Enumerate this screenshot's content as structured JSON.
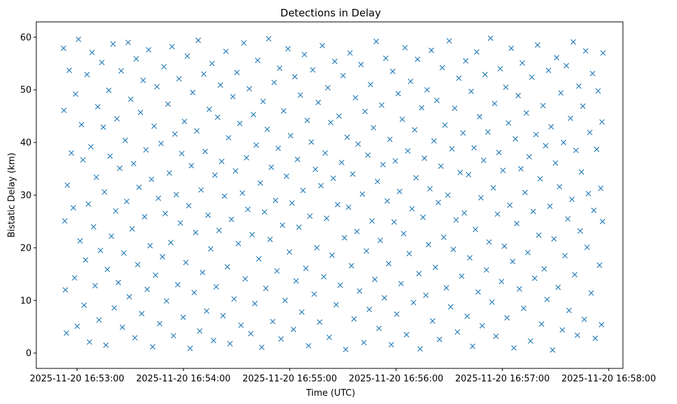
{
  "chart_data": {
    "type": "scatter",
    "title": "Detections in Delay",
    "xlabel": "Time (UTC)",
    "ylabel": "Bistatic Delay (km)",
    "marker": "x",
    "color": "#1f77b4",
    "x_unit": "seconds after 2025-11-20 16:52:00 UTC",
    "xlim": [
      37.0,
      368.0
    ],
    "ylim": [
      -2.9,
      62.9
    ],
    "x_ticks": [
      {
        "value": 60,
        "label": "2025-11-20 16:53:00"
      },
      {
        "value": 120,
        "label": "2025-11-20 16:54:00"
      },
      {
        "value": 180,
        "label": "2025-11-20 16:55:00"
      },
      {
        "value": 240,
        "label": "2025-11-20 16:56:00"
      },
      {
        "value": 300,
        "label": "2025-11-20 16:57:00"
      },
      {
        "value": 360,
        "label": "2025-11-20 16:58:00"
      }
    ],
    "y_ticks": [
      {
        "value": 0,
        "label": "0"
      },
      {
        "value": 10,
        "label": "10"
      },
      {
        "value": 20,
        "label": "20"
      },
      {
        "value": 30,
        "label": "30"
      },
      {
        "value": 40,
        "label": "40"
      },
      {
        "value": 50,
        "label": "50"
      },
      {
        "value": 60,
        "label": "60"
      }
    ],
    "points": [
      [
        52.4,
        57.9
      ],
      [
        52.6,
        46.1
      ],
      [
        53.1,
        25.1
      ],
      [
        53.4,
        12.0
      ],
      [
        54.0,
        3.8
      ],
      [
        54.5,
        31.9
      ],
      [
        55.6,
        53.7
      ],
      [
        56.8,
        38.0
      ],
      [
        57.9,
        27.6
      ],
      [
        58.6,
        14.3
      ],
      [
        59.2,
        49.2
      ],
      [
        60.1,
        5.1
      ],
      [
        60.8,
        59.6
      ],
      [
        61.7,
        21.3
      ],
      [
        62.5,
        43.4
      ],
      [
        63.3,
        36.7
      ],
      [
        64.0,
        9.1
      ],
      [
        64.8,
        17.7
      ],
      [
        65.6,
        52.9
      ],
      [
        66.4,
        28.3
      ],
      [
        67.0,
        2.1
      ],
      [
        67.8,
        39.2
      ],
      [
        68.5,
        57.1
      ],
      [
        69.3,
        24.0
      ],
      [
        70.2,
        12.8
      ],
      [
        70.9,
        33.4
      ],
      [
        71.7,
        46.8
      ],
      [
        72.4,
        6.3
      ],
      [
        73.2,
        19.5
      ],
      [
        74.0,
        55.2
      ],
      [
        74.8,
        42.9
      ],
      [
        75.5,
        30.6
      ],
      [
        76.3,
        1.5
      ],
      [
        77.1,
        15.9
      ],
      [
        77.9,
        49.9
      ],
      [
        78.6,
        37.4
      ],
      [
        79.4,
        22.2
      ],
      [
        80.3,
        58.7
      ],
      [
        81.0,
        8.6
      ],
      [
        81.8,
        27.0
      ],
      [
        82.5,
        44.5
      ],
      [
        83.3,
        13.4
      ],
      [
        84.1,
        35.1
      ],
      [
        84.9,
        53.6
      ],
      [
        85.6,
        4.9
      ],
      [
        86.4,
        19.0
      ],
      [
        87.2,
        40.4
      ],
      [
        88.0,
        28.8
      ],
      [
        88.8,
        59.0
      ],
      [
        89.5,
        10.7
      ],
      [
        90.3,
        48.2
      ],
      [
        91.1,
        23.6
      ],
      [
        91.9,
        36.0
      ],
      [
        92.6,
        2.9
      ],
      [
        93.4,
        55.9
      ],
      [
        94.2,
        16.8
      ],
      [
        95.0,
        31.5
      ],
      [
        95.8,
        45.7
      ],
      [
        96.5,
        7.5
      ],
      [
        97.3,
        51.8
      ],
      [
        98.1,
        25.9
      ],
      [
        98.9,
        38.6
      ],
      [
        99.6,
        12.1
      ],
      [
        100.4,
        57.6
      ],
      [
        101.2,
        20.4
      ],
      [
        102.0,
        33.0
      ],
      [
        102.7,
        1.2
      ],
      [
        103.5,
        43.1
      ],
      [
        104.3,
        14.8
      ],
      [
        105.1,
        50.6
      ],
      [
        105.9,
        29.4
      ],
      [
        106.6,
        5.6
      ],
      [
        107.4,
        39.8
      ],
      [
        108.2,
        18.3
      ],
      [
        109.0,
        54.4
      ],
      [
        109.8,
        26.5
      ],
      [
        110.5,
        9.9
      ],
      [
        111.3,
        47.3
      ],
      [
        112.1,
        34.2
      ],
      [
        112.9,
        21.0
      ],
      [
        113.6,
        58.2
      ],
      [
        114.4,
        3.3
      ],
      [
        115.2,
        41.6
      ],
      [
        116.0,
        30.1
      ],
      [
        116.8,
        13.0
      ],
      [
        117.5,
        52.1
      ],
      [
        118.3,
        24.7
      ],
      [
        119.1,
        37.9
      ],
      [
        119.9,
        6.8
      ],
      [
        120.6,
        44.0
      ],
      [
        121.4,
        17.2
      ],
      [
        122.2,
        56.4
      ],
      [
        123.0,
        28.0
      ],
      [
        123.8,
        0.9
      ],
      [
        124.5,
        35.6
      ],
      [
        125.3,
        49.5
      ],
      [
        126.1,
        11.5
      ],
      [
        126.9,
        22.9
      ],
      [
        127.6,
        42.2
      ],
      [
        128.4,
        59.4
      ],
      [
        129.2,
        4.2
      ],
      [
        130.0,
        31.0
      ],
      [
        130.8,
        15.3
      ],
      [
        131.5,
        53.0
      ],
      [
        132.3,
        38.3
      ],
      [
        133.1,
        8.0
      ],
      [
        133.9,
        26.2
      ],
      [
        134.6,
        46.3
      ],
      [
        135.4,
        19.8
      ],
      [
        136.2,
        55.0
      ],
      [
        137.0,
        2.4
      ],
      [
        137.8,
        33.8
      ],
      [
        138.5,
        12.6
      ],
      [
        139.3,
        44.8
      ],
      [
        140.1,
        23.3
      ],
      [
        140.9,
        50.9
      ],
      [
        141.6,
        36.4
      ],
      [
        142.4,
        7.1
      ],
      [
        143.2,
        29.8
      ],
      [
        144.0,
        57.3
      ],
      [
        144.8,
        16.4
      ],
      [
        145.5,
        40.9
      ],
      [
        146.3,
        1.8
      ],
      [
        147.1,
        25.4
      ],
      [
        147.9,
        48.7
      ],
      [
        148.6,
        10.3
      ],
      [
        149.4,
        34.6
      ],
      [
        150.2,
        53.3
      ],
      [
        151.0,
        20.8
      ],
      [
        151.8,
        43.6
      ],
      [
        152.5,
        5.3
      ],
      [
        153.3,
        30.4
      ],
      [
        154.1,
        58.9
      ],
      [
        154.9,
        14.1
      ],
      [
        155.6,
        37.1
      ],
      [
        156.4,
        27.3
      ],
      [
        157.2,
        50.2
      ],
      [
        158.0,
        3.7
      ],
      [
        158.8,
        22.5
      ],
      [
        159.5,
        45.3
      ],
      [
        160.3,
        9.4
      ],
      [
        161.1,
        39.5
      ],
      [
        161.9,
        55.6
      ],
      [
        162.6,
        17.9
      ],
      [
        163.4,
        32.3
      ],
      [
        164.2,
        1.1
      ],
      [
        165.0,
        47.8
      ],
      [
        165.8,
        26.8
      ],
      [
        166.5,
        12.3
      ],
      [
        167.3,
        42.5
      ],
      [
        168.1,
        59.7
      ],
      [
        168.9,
        21.6
      ],
      [
        169.6,
        35.3
      ],
      [
        170.4,
        6.0
      ],
      [
        171.2,
        51.4
      ],
      [
        172.0,
        29.0
      ],
      [
        172.8,
        15.6
      ],
      [
        173.5,
        38.9
      ],
      [
        174.3,
        54.1
      ],
      [
        175.1,
        2.7
      ],
      [
        175.9,
        24.3
      ],
      [
        176.6,
        46.0
      ],
      [
        177.4,
        10.0
      ],
      [
        178.2,
        33.6
      ],
      [
        179.0,
        57.8
      ],
      [
        179.8,
        19.2
      ],
      [
        180.5,
        41.3
      ],
      [
        181.3,
        28.5
      ],
      [
        182.1,
        4.5
      ],
      [
        182.9,
        52.5
      ],
      [
        183.6,
        13.7
      ],
      [
        184.4,
        36.8
      ],
      [
        185.2,
        23.9
      ],
      [
        186.0,
        49.0
      ],
      [
        186.8,
        7.8
      ],
      [
        187.5,
        30.9
      ],
      [
        188.3,
        56.7
      ],
      [
        189.1,
        16.1
      ],
      [
        189.9,
        44.2
      ],
      [
        190.6,
        1.4
      ],
      [
        191.4,
        26.0
      ],
      [
        192.2,
        40.1
      ],
      [
        193.0,
        53.8
      ],
      [
        193.8,
        11.2
      ],
      [
        194.5,
        34.9
      ],
      [
        195.3,
        20.0
      ],
      [
        196.1,
        47.6
      ],
      [
        196.9,
        5.9
      ],
      [
        197.6,
        31.8
      ],
      [
        198.4,
        58.4
      ],
      [
        199.2,
        14.5
      ],
      [
        200.0,
        38.0
      ],
      [
        200.8,
        25.6
      ],
      [
        201.5,
        50.4
      ],
      [
        202.3,
        3.0
      ],
      [
        203.1,
        43.8
      ],
      [
        203.9,
        18.6
      ],
      [
        204.6,
        33.2
      ],
      [
        205.4,
        55.4
      ],
      [
        206.2,
        9.2
      ],
      [
        207.0,
        28.2
      ],
      [
        207.8,
        45.0
      ],
      [
        208.5,
        12.9
      ],
      [
        209.3,
        36.2
      ],
      [
        210.1,
        52.7
      ],
      [
        210.9,
        21.9
      ],
      [
        211.6,
        0.7
      ],
      [
        212.4,
        41.0
      ],
      [
        213.2,
        27.7
      ],
      [
        214.0,
        57.0
      ],
      [
        214.8,
        16.6
      ],
      [
        215.5,
        34.0
      ],
      [
        216.3,
        6.5
      ],
      [
        217.1,
        48.5
      ],
      [
        217.9,
        23.1
      ],
      [
        218.6,
        39.7
      ],
      [
        219.4,
        11.8
      ],
      [
        220.2,
        54.8
      ],
      [
        221.0,
        30.2
      ],
      [
        221.8,
        2.0
      ],
      [
        222.5,
        45.9
      ],
      [
        223.3,
        19.4
      ],
      [
        224.1,
        37.6
      ],
      [
        224.9,
        8.3
      ],
      [
        225.6,
        51.0
      ],
      [
        226.4,
        25.1
      ],
      [
        227.2,
        42.8
      ],
      [
        228.0,
        14.0
      ],
      [
        228.8,
        59.2
      ],
      [
        229.5,
        32.6
      ],
      [
        230.3,
        4.7
      ],
      [
        231.1,
        21.4
      ],
      [
        231.9,
        47.1
      ],
      [
        232.6,
        35.8
      ],
      [
        233.4,
        10.5
      ],
      [
        234.2,
        56.0
      ],
      [
        235.0,
        28.9
      ],
      [
        235.8,
        17.0
      ],
      [
        236.5,
        40.6
      ],
      [
        237.3,
        1.6
      ],
      [
        238.1,
        53.5
      ],
      [
        238.9,
        24.9
      ],
      [
        239.6,
        36.5
      ],
      [
        240.4,
        7.4
      ],
      [
        241.2,
        49.3
      ],
      [
        242.0,
        30.7
      ],
      [
        242.8,
        13.2
      ],
      [
        243.5,
        44.4
      ],
      [
        244.3,
        22.7
      ],
      [
        245.1,
        58.0
      ],
      [
        245.9,
        3.5
      ],
      [
        246.6,
        38.4
      ],
      [
        247.4,
        18.9
      ],
      [
        248.2,
        51.6
      ],
      [
        249.0,
        27.4
      ],
      [
        249.8,
        9.6
      ],
      [
        250.5,
        42.4
      ],
      [
        251.3,
        33.3
      ],
      [
        252.1,
        55.8
      ],
      [
        252.9,
        15.1
      ],
      [
        253.6,
        0.8
      ],
      [
        254.4,
        46.6
      ],
      [
        255.2,
        25.8
      ],
      [
        256.0,
        37.0
      ],
      [
        256.8,
        11.0
      ],
      [
        257.5,
        50.0
      ],
      [
        258.3,
        20.6
      ],
      [
        259.1,
        31.2
      ],
      [
        259.9,
        57.5
      ],
      [
        260.6,
        6.1
      ],
      [
        261.4,
        40.3
      ],
      [
        262.2,
        16.3
      ],
      [
        263.0,
        48.0
      ],
      [
        263.8,
        28.6
      ],
      [
        264.5,
        2.6
      ],
      [
        265.3,
        35.5
      ],
      [
        266.1,
        54.2
      ],
      [
        266.9,
        22.0
      ],
      [
        267.6,
        43.3
      ],
      [
        268.4,
        12.4
      ],
      [
        269.2,
        30.0
      ],
      [
        270.0,
        59.3
      ],
      [
        270.8,
        8.8
      ],
      [
        271.5,
        38.8
      ],
      [
        272.3,
        19.7
      ],
      [
        273.1,
        46.5
      ],
      [
        273.9,
        25.3
      ],
      [
        274.6,
        4.0
      ],
      [
        275.4,
        52.2
      ],
      [
        276.2,
        34.3
      ],
      [
        277.0,
        14.6
      ],
      [
        277.8,
        41.8
      ],
      [
        278.5,
        26.6
      ],
      [
        279.3,
        55.5
      ],
      [
        280.1,
        7.0
      ],
      [
        280.9,
        33.9
      ],
      [
        281.6,
        18.1
      ],
      [
        282.4,
        49.7
      ],
      [
        283.2,
        1.3
      ],
      [
        284.0,
        39.0
      ],
      [
        284.8,
        23.5
      ],
      [
        285.5,
        57.2
      ],
      [
        286.3,
        11.6
      ],
      [
        287.1,
        44.9
      ],
      [
        287.9,
        29.5
      ],
      [
        288.6,
        5.2
      ],
      [
        289.4,
        36.6
      ],
      [
        290.2,
        52.9
      ],
      [
        291.0,
        15.8
      ],
      [
        291.8,
        42.0
      ],
      [
        292.5,
        21.1
      ],
      [
        293.3,
        59.8
      ],
      [
        294.1,
        9.7
      ],
      [
        294.9,
        31.4
      ],
      [
        295.6,
        47.4
      ],
      [
        296.4,
        3.2
      ],
      [
        297.2,
        26.4
      ],
      [
        298.0,
        38.1
      ],
      [
        298.8,
        54.0
      ],
      [
        299.5,
        13.6
      ],
      [
        300.3,
        34.7
      ],
      [
        301.1,
        20.3
      ],
      [
        301.9,
        50.5
      ],
      [
        302.6,
        6.7
      ],
      [
        303.4,
        43.7
      ],
      [
        304.2,
        28.1
      ],
      [
        305.0,
        57.9
      ],
      [
        305.8,
        17.4
      ],
      [
        306.5,
        1.0
      ],
      [
        307.3,
        40.7
      ],
      [
        308.1,
        24.6
      ],
      [
        308.9,
        48.9
      ],
      [
        309.6,
        12.2
      ],
      [
        310.4,
        35.0
      ],
      [
        311.2,
        55.1
      ],
      [
        312.0,
        8.5
      ],
      [
        312.8,
        30.5
      ],
      [
        313.5,
        45.6
      ],
      [
        314.3,
        19.1
      ],
      [
        315.1,
        37.3
      ],
      [
        315.9,
        2.3
      ],
      [
        316.6,
        52.4
      ],
      [
        317.4,
        26.9
      ],
      [
        318.2,
        14.2
      ],
      [
        319.0,
        41.5
      ],
      [
        319.8,
        58.5
      ],
      [
        320.5,
        22.4
      ],
      [
        321.3,
        33.1
      ],
      [
        322.1,
        5.5
      ],
      [
        322.9,
        47.0
      ],
      [
        323.6,
        16.0
      ],
      [
        324.4,
        39.4
      ],
      [
        325.2,
        10.2
      ],
      [
        326.0,
        53.7
      ],
      [
        326.8,
        27.9
      ],
      [
        327.5,
        43.0
      ],
      [
        328.3,
        0.6
      ],
      [
        329.1,
        21.7
      ],
      [
        329.9,
        36.1
      ],
      [
        330.6,
        56.1
      ],
      [
        331.4,
        12.5
      ],
      [
        332.2,
        31.6
      ],
      [
        333.0,
        49.4
      ],
      [
        333.8,
        4.4
      ],
      [
        334.5,
        40.0
      ],
      [
        335.3,
        18.5
      ],
      [
        336.1,
        54.6
      ],
      [
        336.9,
        25.5
      ],
      [
        337.6,
        8.1
      ],
      [
        338.4,
        44.6
      ],
      [
        339.2,
        29.2
      ],
      [
        340.0,
        59.1
      ],
      [
        340.8,
        14.9
      ],
      [
        341.5,
        38.5
      ],
      [
        342.3,
        3.4
      ],
      [
        343.1,
        50.7
      ],
      [
        343.9,
        23.2
      ],
      [
        344.6,
        34.4
      ],
      [
        345.4,
        46.9
      ],
      [
        346.2,
        6.4
      ],
      [
        347.0,
        57.4
      ],
      [
        347.8,
        20.1
      ],
      [
        348.5,
        30.3
      ],
      [
        349.3,
        41.9
      ],
      [
        350.1,
        11.4
      ],
      [
        350.9,
        53.1
      ],
      [
        351.6,
        27.1
      ],
      [
        352.4,
        2.8
      ],
      [
        353.2,
        38.7
      ],
      [
        354.0,
        49.8
      ],
      [
        354.8,
        16.7
      ],
      [
        355.5,
        31.3
      ],
      [
        355.9,
        5.4
      ],
      [
        356.2,
        43.9
      ],
      [
        356.5,
        25.0
      ],
      [
        356.8,
        57.0
      ]
    ]
  }
}
